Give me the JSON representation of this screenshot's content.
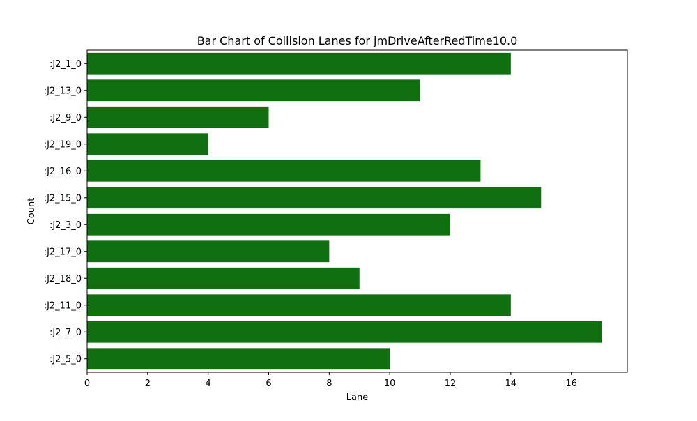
{
  "chart_data": {
    "type": "bar",
    "orientation": "horizontal",
    "title": "Bar Chart of Collision Lanes for jmDriveAfterRedTime10.0",
    "xlabel": "Lane",
    "ylabel": "Count",
    "categories": [
      ":J2_1_0",
      ":J2_13_0",
      ":J2_9_0",
      ":J2_19_0",
      ":J2_16_0",
      ":J2_15_0",
      ":J2_3_0",
      ":J2_17_0",
      ":J2_18_0",
      ":J2_11_0",
      ":J2_7_0",
      ":J2_5_0"
    ],
    "values": [
      14,
      11,
      6,
      4,
      13,
      15,
      12,
      8,
      9,
      14,
      17,
      10
    ],
    "xlim": [
      0,
      17.85
    ],
    "xticks": [
      "0",
      "2",
      "4",
      "6",
      "8",
      "10",
      "12",
      "14",
      "16"
    ],
    "bar_color": "#107010",
    "grid": false,
    "legend": "none"
  }
}
